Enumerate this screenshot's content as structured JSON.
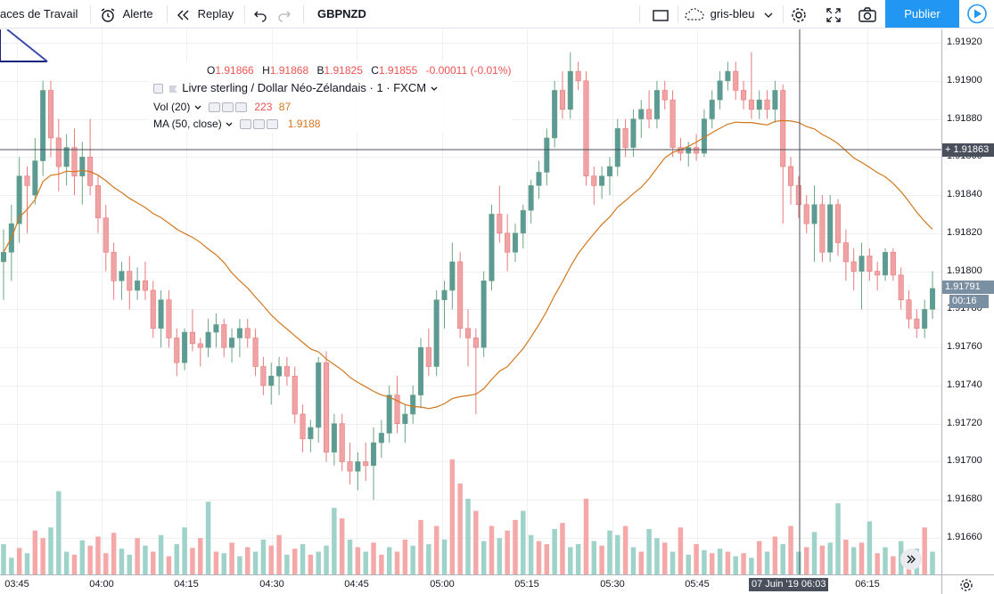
{
  "toolbar": {
    "workspaces_label": "aces de Travail",
    "alert_label": "Alerte",
    "replay_label": "Replay",
    "symbol": "GBPNZD",
    "theme_label": "gris-bleu",
    "publish_label": "Publier"
  },
  "legend": {
    "ohlc": {
      "o_key": "O",
      "o_val": "1.91866",
      "h_key": "H",
      "h_val": "1.91868",
      "b_key": "B",
      "b_val": "1.91825",
      "c_key": "C",
      "c_val": "1.91855",
      "change": "-0.00011 (-0.01%)"
    },
    "title": "Livre sterling / Dollar Néo-Zélandais · 1 · FXCM",
    "vol_label": "Vol (20)",
    "vol_values": [
      "223",
      "87"
    ],
    "ma_label": "MA (50, close)",
    "ma_value": "1.9188"
  },
  "price_axis": {
    "ticks": [
      "1.91920",
      "1.91900",
      "1.91880",
      "1.91860",
      "1.91840",
      "1.91820",
      "1.91800",
      "1.91780",
      "1.91760",
      "1.91740",
      "1.91720",
      "1.91700",
      "1.91680",
      "1.91660"
    ],
    "crosshair_price": "1.91863",
    "last_price": "1.91791",
    "countdown": "00:16"
  },
  "time_axis": {
    "ticks": [
      "03:45",
      "04:00",
      "04:15",
      "04:30",
      "04:45",
      "05:00",
      "05:15",
      "05:30",
      "05:45",
      "06:15"
    ],
    "crosshair_date": "07 Juin '19",
    "crosshair_time": "06:03"
  },
  "colors": {
    "up": "#6ba583",
    "down": "#e8797a",
    "up_body": "#5b9a95",
    "down_body": "#f0a3a4",
    "vol_up": "#9fd3ca",
    "vol_down": "#f4a8a8",
    "ma": "#d2771c",
    "accent": "#2196f3"
  },
  "icons": [
    "alert-icon",
    "replay-icon",
    "undo-icon",
    "redo-icon",
    "rectangle-icon",
    "cloud-icon",
    "chevron-down-icon",
    "gear-icon",
    "fullscreen-icon",
    "camera-icon",
    "play-icon",
    "settings-icon",
    "scroll-right-icon"
  ],
  "chart_data": {
    "type": "candlestick",
    "symbol": "GBPNZD",
    "y_range": [
      1.91645,
      1.91935
    ],
    "ma_period": 50,
    "candles": [
      [
        1.91805,
        1.91822,
        1.91785,
        1.9181
      ],
      [
        1.9181,
        1.91835,
        1.91795,
        1.91825
      ],
      [
        1.91825,
        1.9186,
        1.91815,
        1.9185
      ],
      [
        1.9185,
        1.91855,
        1.9182,
        1.91845
      ],
      [
        1.9184,
        1.9187,
        1.91835,
        1.91858
      ],
      [
        1.91858,
        1.919,
        1.9185,
        1.91895
      ],
      [
        1.91895,
        1.919,
        1.9186,
        1.9187
      ],
      [
        1.9187,
        1.9188,
        1.91842,
        1.91855
      ],
      [
        1.91855,
        1.91872,
        1.91845,
        1.91865
      ],
      [
        1.91865,
        1.91875,
        1.9184,
        1.9185
      ],
      [
        1.9185,
        1.91868,
        1.91835,
        1.9186
      ],
      [
        1.9186,
        1.9188,
        1.9184,
        1.91845
      ],
      [
        1.91845,
        1.9185,
        1.9182,
        1.91828
      ],
      [
        1.91828,
        1.91835,
        1.918,
        1.9181
      ],
      [
        1.9181,
        1.91815,
        1.91785,
        1.91795
      ],
      [
        1.91795,
        1.91805,
        1.91785,
        1.918
      ],
      [
        1.918,
        1.91808,
        1.9178,
        1.9179
      ],
      [
        1.9179,
        1.91802,
        1.91785,
        1.91795
      ],
      [
        1.91795,
        1.91805,
        1.91785,
        1.9179
      ],
      [
        1.9179,
        1.91795,
        1.91765,
        1.9177
      ],
      [
        1.9177,
        1.9179,
        1.9176,
        1.91785
      ],
      [
        1.91785,
        1.9179,
        1.9176,
        1.91765
      ],
      [
        1.91765,
        1.9177,
        1.91745,
        1.91752
      ],
      [
        1.91752,
        1.9177,
        1.91748,
        1.91768
      ],
      [
        1.91768,
        1.9178,
        1.91758,
        1.91762
      ],
      [
        1.91762,
        1.91765,
        1.9175,
        1.9176
      ],
      [
        1.9176,
        1.91775,
        1.91755,
        1.91768
      ],
      [
        1.91768,
        1.91778,
        1.9176,
        1.91772
      ],
      [
        1.91772,
        1.91775,
        1.91755,
        1.9176
      ],
      [
        1.9176,
        1.9177,
        1.91752,
        1.91765
      ],
      [
        1.91765,
        1.91775,
        1.91755,
        1.9177
      ],
      [
        1.9177,
        1.91775,
        1.9176,
        1.91765
      ],
      [
        1.91765,
        1.9177,
        1.91745,
        1.9175
      ],
      [
        1.9175,
        1.91755,
        1.91735,
        1.9174
      ],
      [
        1.9174,
        1.91752,
        1.9173,
        1.91745
      ],
      [
        1.91745,
        1.91755,
        1.91735,
        1.9175
      ],
      [
        1.9175,
        1.91755,
        1.9174,
        1.91745
      ],
      [
        1.91745,
        1.9175,
        1.9172,
        1.91725
      ],
      [
        1.91725,
        1.9173,
        1.91705,
        1.91712
      ],
      [
        1.91712,
        1.91722,
        1.91705,
        1.91718
      ],
      [
        1.91718,
        1.91755,
        1.9171,
        1.91752
      ],
      [
        1.91752,
        1.91758,
        1.917,
        1.91705
      ],
      [
        1.91705,
        1.91725,
        1.91698,
        1.9172
      ],
      [
        1.9172,
        1.91725,
        1.91695,
        1.917
      ],
      [
        1.917,
        1.9171,
        1.91688,
        1.91695
      ],
      [
        1.91695,
        1.91705,
        1.91685,
        1.917
      ],
      [
        1.917,
        1.9171,
        1.9169,
        1.91698
      ],
      [
        1.91698,
        1.91718,
        1.9168,
        1.9171
      ],
      [
        1.9171,
        1.91722,
        1.91702,
        1.91715
      ],
      [
        1.91715,
        1.9174,
        1.9171,
        1.91735
      ],
      [
        1.91735,
        1.91745,
        1.91715,
        1.9172
      ],
      [
        1.9172,
        1.9173,
        1.9171,
        1.91725
      ],
      [
        1.91725,
        1.9174,
        1.9172,
        1.91735
      ],
      [
        1.91735,
        1.91765,
        1.91728,
        1.9176
      ],
      [
        1.9176,
        1.9177,
        1.91745,
        1.9175
      ],
      [
        1.9175,
        1.9179,
        1.91745,
        1.91785
      ],
      [
        1.91785,
        1.91795,
        1.9177,
        1.9179
      ],
      [
        1.9179,
        1.91815,
        1.9178,
        1.91805
      ],
      [
        1.91805,
        1.9181,
        1.91765,
        1.9177
      ],
      [
        1.9177,
        1.9178,
        1.9175,
        1.91765
      ],
      [
        1.91765,
        1.9177,
        1.91725,
        1.9176
      ],
      [
        1.9176,
        1.918,
        1.91755,
        1.91795
      ],
      [
        1.91795,
        1.91835,
        1.9179,
        1.9183
      ],
      [
        1.9183,
        1.91845,
        1.91815,
        1.9182
      ],
      [
        1.9182,
        1.9183,
        1.918,
        1.9181
      ],
      [
        1.9181,
        1.91825,
        1.91805,
        1.9182
      ],
      [
        1.9182,
        1.91835,
        1.91812,
        1.91832
      ],
      [
        1.91832,
        1.91848,
        1.91825,
        1.91845
      ],
      [
        1.91845,
        1.91858,
        1.91838,
        1.91852
      ],
      [
        1.91852,
        1.91875,
        1.91845,
        1.9187
      ],
      [
        1.9187,
        1.919,
        1.91865,
        1.91895
      ],
      [
        1.91895,
        1.91905,
        1.9188,
        1.91885
      ],
      [
        1.91885,
        1.91915,
        1.9188,
        1.91905
      ],
      [
        1.91905,
        1.9191,
        1.91895,
        1.919
      ],
      [
        1.919,
        1.91905,
        1.91845,
        1.9185
      ],
      [
        1.9185,
        1.91855,
        1.91835,
        1.91845
      ],
      [
        1.91845,
        1.91855,
        1.91838,
        1.9185
      ],
      [
        1.9185,
        1.9186,
        1.9184,
        1.91855
      ],
      [
        1.91855,
        1.9188,
        1.9185,
        1.91875
      ],
      [
        1.91875,
        1.9188,
        1.9186,
        1.91865
      ],
      [
        1.91865,
        1.91885,
        1.9186,
        1.9188
      ],
      [
        1.9188,
        1.9189,
        1.9187,
        1.91885
      ],
      [
        1.91885,
        1.91895,
        1.91875,
        1.9188
      ],
      [
        1.9188,
        1.919,
        1.91875,
        1.91895
      ],
      [
        1.91895,
        1.919,
        1.91885,
        1.9189
      ],
      [
        1.9189,
        1.91895,
        1.9186,
        1.91865
      ],
      [
        1.91865,
        1.9187,
        1.91858,
        1.91862
      ],
      [
        1.91862,
        1.91868,
        1.91855,
        1.91865
      ],
      [
        1.91865,
        1.91872,
        1.91858,
        1.91862
      ],
      [
        1.91862,
        1.91885,
        1.9186,
        1.9188
      ],
      [
        1.9188,
        1.91895,
        1.91875,
        1.9189
      ],
      [
        1.9189,
        1.91905,
        1.91885,
        1.919
      ],
      [
        1.919,
        1.9191,
        1.91895,
        1.91905
      ],
      [
        1.91905,
        1.9191,
        1.9189,
        1.91895
      ],
      [
        1.91895,
        1.919,
        1.91885,
        1.9189
      ],
      [
        1.9189,
        1.91915,
        1.9188,
        1.91885
      ],
      [
        1.91885,
        1.91895,
        1.9188,
        1.9189
      ],
      [
        1.9189,
        1.91895,
        1.9188,
        1.91885
      ],
      [
        1.91885,
        1.919,
        1.91878,
        1.91895
      ],
      [
        1.91895,
        1.91898,
        1.91825,
        1.91855
      ],
      [
        1.91855,
        1.9186,
        1.91835,
        1.91845
      ],
      [
        1.91845,
        1.9185,
        1.91828,
        1.91835
      ],
      [
        1.91835,
        1.9184,
        1.9182,
        1.91825
      ],
      [
        1.91825,
        1.91845,
        1.91805,
        1.91835
      ],
      [
        1.91835,
        1.9184,
        1.91805,
        1.9181
      ],
      [
        1.9181,
        1.9184,
        1.91805,
        1.91835
      ],
      [
        1.91835,
        1.91838,
        1.91808,
        1.91815
      ],
      [
        1.91815,
        1.91822,
        1.91795,
        1.91805
      ],
      [
        1.91805,
        1.91812,
        1.9179,
        1.918
      ],
      [
        1.918,
        1.91815,
        1.9178,
        1.91808
      ],
      [
        1.91808,
        1.91812,
        1.91795,
        1.918
      ],
      [
        1.918,
        1.91805,
        1.9179,
        1.91798
      ],
      [
        1.91798,
        1.91812,
        1.91795,
        1.9181
      ],
      [
        1.9181,
        1.91812,
        1.91795,
        1.91798
      ],
      [
        1.91798,
        1.91802,
        1.9178,
        1.91785
      ],
      [
        1.91785,
        1.9179,
        1.9177,
        1.91775
      ],
      [
        1.91775,
        1.9178,
        1.91765,
        1.9177
      ],
      [
        1.9177,
        1.91785,
        1.91765,
        1.9178
      ],
      [
        1.9178,
        1.918,
        1.91775,
        1.91791
      ]
    ],
    "volume": [
      [
        1,
        40
      ],
      [
        1,
        22
      ],
      [
        0,
        35
      ],
      [
        1,
        28
      ],
      [
        0,
        58
      ],
      [
        0,
        48
      ],
      [
        1,
        62
      ],
      [
        1,
        110
      ],
      [
        1,
        30
      ],
      [
        0,
        26
      ],
      [
        1,
        45
      ],
      [
        0,
        38
      ],
      [
        0,
        50
      ],
      [
        0,
        28
      ],
      [
        0,
        55
      ],
      [
        1,
        34
      ],
      [
        1,
        26
      ],
      [
        0,
        48
      ],
      [
        1,
        38
      ],
      [
        0,
        30
      ],
      [
        1,
        52
      ],
      [
        0,
        24
      ],
      [
        1,
        40
      ],
      [
        1,
        62
      ],
      [
        0,
        35
      ],
      [
        0,
        48
      ],
      [
        1,
        96
      ],
      [
        0,
        30
      ],
      [
        1,
        28
      ],
      [
        0,
        42
      ],
      [
        1,
        24
      ],
      [
        0,
        36
      ],
      [
        1,
        30
      ],
      [
        1,
        46
      ],
      [
        0,
        38
      ],
      [
        0,
        52
      ],
      [
        1,
        26
      ],
      [
        0,
        34
      ],
      [
        1,
        40
      ],
      [
        0,
        26
      ],
      [
        1,
        30
      ],
      [
        1,
        38
      ],
      [
        1,
        88
      ],
      [
        0,
        74
      ],
      [
        1,
        46
      ],
      [
        0,
        36
      ],
      [
        1,
        30
      ],
      [
        0,
        42
      ],
      [
        0,
        26
      ],
      [
        1,
        36
      ],
      [
        0,
        30
      ],
      [
        0,
        46
      ],
      [
        1,
        38
      ],
      [
        0,
        72
      ],
      [
        1,
        40
      ],
      [
        0,
        64
      ],
      [
        1,
        46
      ],
      [
        0,
        152
      ],
      [
        0,
        120
      ],
      [
        1,
        100
      ],
      [
        0,
        84
      ],
      [
        1,
        44
      ],
      [
        0,
        64
      ],
      [
        1,
        48
      ],
      [
        0,
        58
      ],
      [
        0,
        72
      ],
      [
        1,
        84
      ],
      [
        1,
        52
      ],
      [
        0,
        44
      ],
      [
        0,
        40
      ],
      [
        1,
        60
      ],
      [
        0,
        68
      ],
      [
        1,
        36
      ],
      [
        1,
        40
      ],
      [
        0,
        100
      ],
      [
        1,
        44
      ],
      [
        0,
        38
      ],
      [
        1,
        58
      ],
      [
        1,
        52
      ],
      [
        0,
        64
      ],
      [
        1,
        36
      ],
      [
        0,
        30
      ],
      [
        1,
        60
      ],
      [
        1,
        48
      ],
      [
        0,
        42
      ],
      [
        1,
        30
      ],
      [
        0,
        62
      ],
      [
        1,
        26
      ],
      [
        0,
        40
      ],
      [
        1,
        32
      ],
      [
        0,
        28
      ],
      [
        1,
        34
      ],
      [
        0,
        30
      ],
      [
        1,
        24
      ],
      [
        0,
        28
      ],
      [
        1,
        22
      ],
      [
        0,
        44
      ],
      [
        1,
        30
      ],
      [
        0,
        50
      ],
      [
        1,
        40
      ],
      [
        0,
        64
      ],
      [
        1,
        30
      ],
      [
        0,
        36
      ],
      [
        1,
        56
      ],
      [
        0,
        38
      ],
      [
        1,
        42
      ],
      [
        1,
        94
      ],
      [
        0,
        46
      ],
      [
        1,
        36
      ],
      [
        0,
        42
      ],
      [
        1,
        70
      ],
      [
        0,
        28
      ],
      [
        1,
        36
      ],
      [
        0,
        24
      ],
      [
        1,
        44
      ],
      [
        0,
        28
      ],
      [
        1,
        34
      ],
      [
        0,
        62
      ],
      [
        1,
        30
      ],
      [
        0,
        40
      ]
    ]
  }
}
